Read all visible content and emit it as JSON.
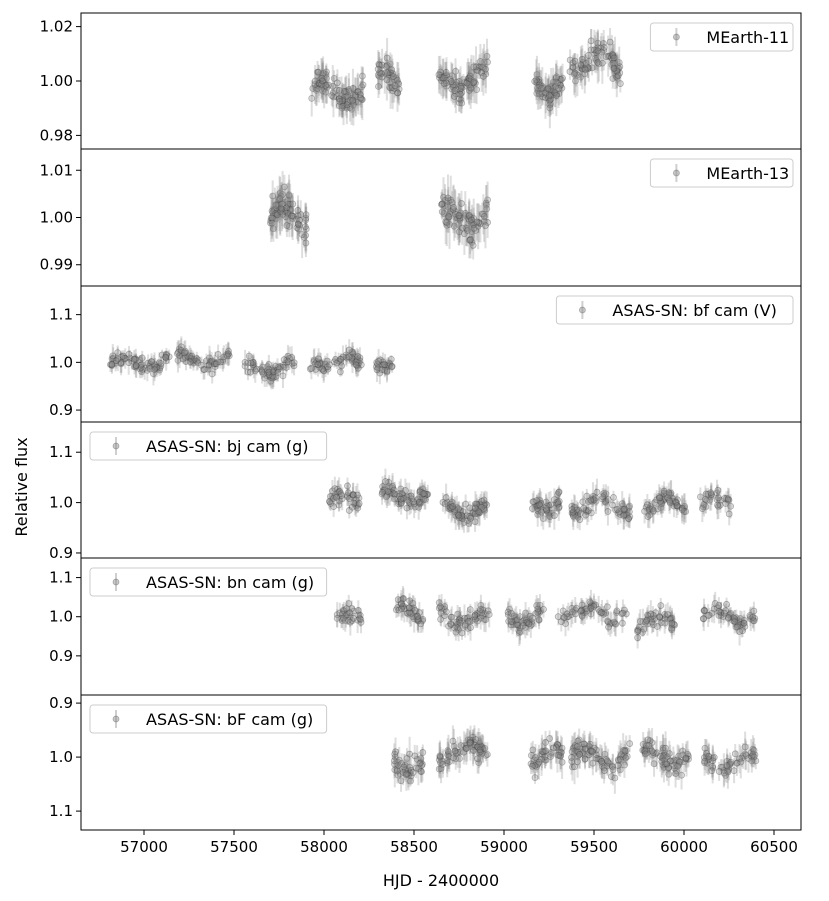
{
  "figure": {
    "xlabel": "HJD - 2400000",
    "ylabel": "Relative flux"
  },
  "chart_data": {
    "type": "scatter",
    "x_axis": {
      "label": "HJD - 2400000",
      "range": [
        56650,
        60650
      ],
      "ticks": [
        57000,
        57500,
        58000,
        58500,
        59000,
        59500,
        60000,
        60500
      ]
    },
    "y_axis_label": "Relative flux",
    "marker_color": "#888888",
    "panels": [
      {
        "id": "mearth11",
        "legend": "MEarth-11",
        "legend_position": "top-right",
        "ylim": [
          0.975,
          1.025
        ],
        "inverted": false,
        "yticks": [
          0.98,
          1.0,
          1.02
        ],
        "ytick_labels": [
          "0.98",
          "1.00",
          "1.02"
        ],
        "scatter": 0.006,
        "seasons": [
          {
            "start": 57930,
            "end": 58220,
            "level": 0.996,
            "n": 90
          },
          {
            "start": 58300,
            "end": 58420,
            "level": 1.0,
            "n": 40
          },
          {
            "start": 58630,
            "end": 58910,
            "level": 1.001,
            "n": 80
          },
          {
            "start": 59170,
            "end": 59330,
            "level": 0.999,
            "n": 60
          },
          {
            "start": 59360,
            "end": 59650,
            "level": 1.006,
            "n": 80
          }
        ]
      },
      {
        "id": "mearth13",
        "legend": "MEarth-13",
        "legend_position": "top-right",
        "ylim": [
          0.9855,
          1.0145
        ],
        "inverted": false,
        "yticks": [
          0.99,
          1.0,
          1.01
        ],
        "ytick_labels": [
          "0.99",
          "1.00",
          "1.01"
        ],
        "scatter": 0.004,
        "seasons": [
          {
            "start": 57700,
            "end": 57910,
            "level": 1.0,
            "n": 80
          },
          {
            "start": 58650,
            "end": 58910,
            "level": 1.0,
            "n": 80
          }
        ]
      },
      {
        "id": "asas_bf_v",
        "legend": "ASAS-SN: bf cam (V)",
        "legend_position": "top-right",
        "ylim": [
          0.875,
          1.16
        ],
        "inverted": false,
        "yticks": [
          0.9,
          1.0,
          1.1
        ],
        "ytick_labels": [
          "0.9",
          "1.0",
          "1.1"
        ],
        "scatter": 0.02,
        "seasons": [
          {
            "start": 56810,
            "end": 57140,
            "level": 1.0,
            "n": 70
          },
          {
            "start": 57180,
            "end": 57480,
            "level": 1.005,
            "n": 60
          },
          {
            "start": 57560,
            "end": 57840,
            "level": 0.99,
            "n": 60
          },
          {
            "start": 57920,
            "end": 58210,
            "level": 1.0,
            "n": 60
          },
          {
            "start": 58290,
            "end": 58380,
            "level": 1.0,
            "n": 25
          }
        ]
      },
      {
        "id": "asas_bj_g",
        "legend": "ASAS-SN: bj cam (g)",
        "legend_position": "top-left",
        "ylim": [
          0.89,
          1.16
        ],
        "inverted": false,
        "yticks": [
          0.9,
          1.0,
          1.1
        ],
        "ytick_labels": [
          "0.9",
          "1.0",
          "1.1"
        ],
        "scatter": 0.022,
        "seasons": [
          {
            "start": 58030,
            "end": 58210,
            "level": 1.005,
            "n": 40
          },
          {
            "start": 58320,
            "end": 58580,
            "level": 1.015,
            "n": 70
          },
          {
            "start": 58660,
            "end": 58910,
            "level": 0.985,
            "n": 70
          },
          {
            "start": 59150,
            "end": 59320,
            "level": 1.0,
            "n": 45
          },
          {
            "start": 59370,
            "end": 59700,
            "level": 0.995,
            "n": 70
          },
          {
            "start": 59780,
            "end": 60010,
            "level": 0.995,
            "n": 55
          },
          {
            "start": 60090,
            "end": 60260,
            "level": 1.0,
            "n": 30
          }
        ]
      },
      {
        "id": "asas_bn_g",
        "legend": "ASAS-SN: bn cam (g)",
        "legend_position": "top-left",
        "ylim": [
          0.8,
          1.15
        ],
        "inverted": false,
        "yticks": [
          0.9,
          1.0,
          1.1
        ],
        "ytick_labels": [
          "0.9",
          "1.0",
          "1.1"
        ],
        "scatter": 0.028,
        "seasons": [
          {
            "start": 58070,
            "end": 58210,
            "level": 0.99,
            "n": 30
          },
          {
            "start": 58400,
            "end": 58560,
            "level": 1.01,
            "n": 40
          },
          {
            "start": 58640,
            "end": 58920,
            "level": 1.0,
            "n": 60
          },
          {
            "start": 59020,
            "end": 59220,
            "level": 1.0,
            "n": 50
          },
          {
            "start": 59300,
            "end": 59680,
            "level": 1.01,
            "n": 60
          },
          {
            "start": 59740,
            "end": 59960,
            "level": 0.985,
            "n": 45
          },
          {
            "start": 60100,
            "end": 60400,
            "level": 1.0,
            "n": 55
          }
        ]
      },
      {
        "id": "asas_bF_g",
        "legend": "ASAS-SN: bF cam (g)",
        "legend_position": "top-left",
        "ylim": [
          1.135,
          0.885
        ],
        "inverted": true,
        "yticks": [
          0.9,
          1.0,
          1.1
        ],
        "ytick_labels": [
          "0.9",
          "1.0",
          "1.1"
        ],
        "scatter": 0.025,
        "seasons": [
          {
            "start": 58390,
            "end": 58560,
            "level": 1.01,
            "n": 45
          },
          {
            "start": 58640,
            "end": 58910,
            "level": 0.99,
            "n": 70
          },
          {
            "start": 59150,
            "end": 59330,
            "level": 1.0,
            "n": 45
          },
          {
            "start": 59370,
            "end": 59700,
            "level": 1.0,
            "n": 80
          },
          {
            "start": 59770,
            "end": 60030,
            "level": 1.0,
            "n": 65
          },
          {
            "start": 60100,
            "end": 60400,
            "level": 1.01,
            "n": 55
          }
        ]
      }
    ]
  }
}
